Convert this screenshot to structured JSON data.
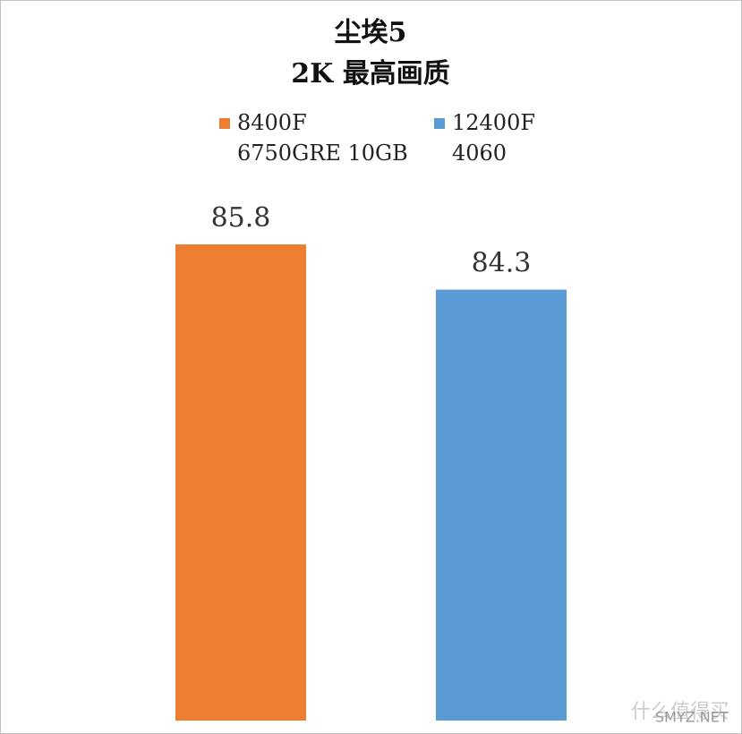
{
  "chart_data": {
    "type": "bar",
    "title": "尘埃5",
    "subtitle": "2K 最高画质",
    "categories": [
      null
    ],
    "series": [
      {
        "name": "8400F\n6750GRE 10GB",
        "color": "#ed7d31",
        "values": [
          85.8
        ]
      },
      {
        "name": "12400F\n4060",
        "color": "#5b9bd5",
        "values": [
          84.3
        ]
      }
    ],
    "ylim": [
      70,
      88
    ],
    "grid": false,
    "legend": "top",
    "watermark": "什么值得买",
    "watermark_sub": "SMYZ.NET"
  }
}
